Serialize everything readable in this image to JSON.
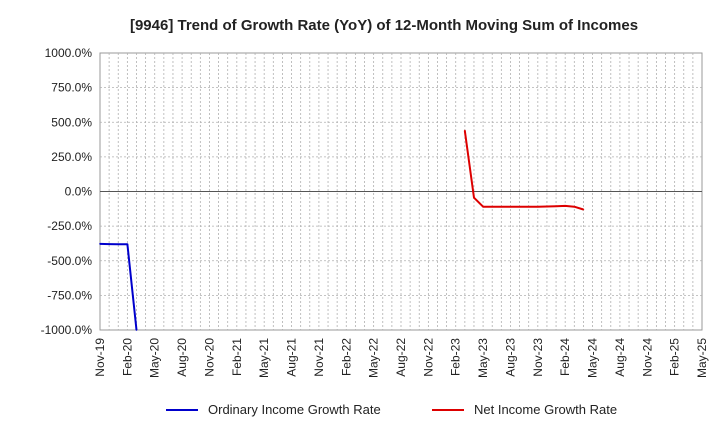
{
  "chart_data": {
    "type": "line",
    "title": "[9946]  Trend of Growth Rate (YoY) of 12-Month Moving Sum of Incomes",
    "xlabel": "",
    "ylabel": "",
    "ylim": [
      -1000,
      1000
    ],
    "y_ticks": [
      1000,
      750,
      500,
      250,
      0,
      -250,
      -500,
      -750,
      -1000
    ],
    "y_tick_labels": [
      "1000.0%",
      "750.0%",
      "500.0%",
      "250.0%",
      "0.0%",
      "-250.0%",
      "-500.0%",
      "-750.0%",
      "-1000.0%"
    ],
    "x_range": [
      "2019-11",
      "2025-05"
    ],
    "x_tick_labels": [
      "Nov-19",
      "Feb-20",
      "May-20",
      "Aug-20",
      "Nov-20",
      "Feb-21",
      "May-21",
      "Aug-21",
      "Nov-21",
      "Feb-22",
      "May-22",
      "Aug-22",
      "Nov-22",
      "Feb-23",
      "May-23",
      "Aug-23",
      "Nov-23",
      "Feb-24",
      "May-24",
      "Aug-24",
      "Nov-24",
      "Feb-25",
      "May-25"
    ],
    "grid": true,
    "legend_position": "bottom",
    "series": [
      {
        "name": "Ordinary Income Growth Rate",
        "color": "#0000cc",
        "points": [
          [
            "2019-11",
            -378
          ],
          [
            "2019-12",
            -380
          ],
          [
            "2020-01",
            -381
          ],
          [
            "2020-02",
            -381
          ],
          [
            "2020-03",
            -1000
          ]
        ]
      },
      {
        "name": "Net Income Growth Rate",
        "color": "#dd0000",
        "points": [
          [
            "2023-03",
            440
          ],
          [
            "2023-04",
            -45
          ],
          [
            "2023-05",
            -110
          ],
          [
            "2023-06",
            -110
          ],
          [
            "2023-07",
            -110
          ],
          [
            "2023-08",
            -110
          ],
          [
            "2023-09",
            -110
          ],
          [
            "2023-10",
            -110
          ],
          [
            "2023-11",
            -110
          ],
          [
            "2023-12",
            -108
          ],
          [
            "2024-01",
            -106
          ],
          [
            "2024-02",
            -104
          ],
          [
            "2024-03",
            -110
          ],
          [
            "2024-04",
            -130
          ]
        ]
      }
    ]
  }
}
